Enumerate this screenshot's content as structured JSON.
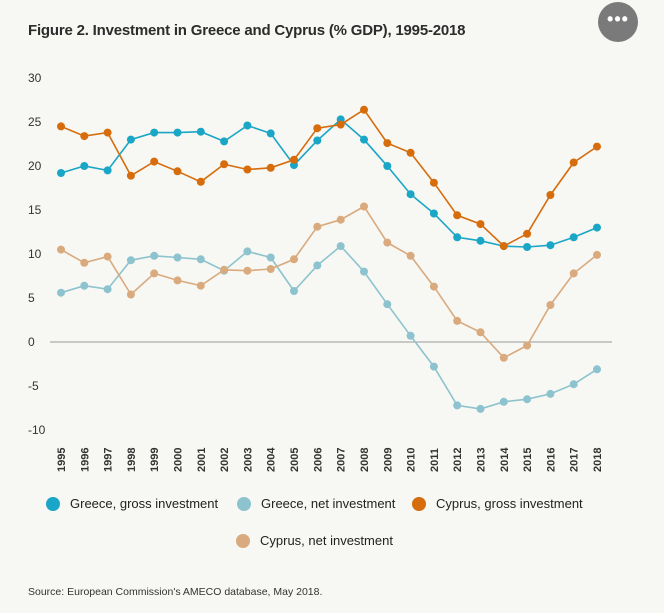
{
  "header": {
    "title": "Figure 2. Investment in Greece and Cyprus (% GDP), 1995-2018",
    "more_label": "•••"
  },
  "chart_data": {
    "type": "line",
    "title": "Figure 2. Investment in Greece and Cyprus (% GDP), 1995-2018",
    "xlabel": "",
    "ylabel": "",
    "ylim": [
      -10,
      30
    ],
    "yticks": [
      30,
      25,
      20,
      15,
      10,
      5,
      0,
      -5,
      -10
    ],
    "ytick_labels": [
      "30",
      "25",
      "20",
      "15",
      "10",
      "5",
      "0",
      "-5",
      "-10"
    ],
    "categories": [
      "1995",
      "1996",
      "1997",
      "1998",
      "1999",
      "2000",
      "2001",
      "2002",
      "2003",
      "2004",
      "2005",
      "2006",
      "2007",
      "2008",
      "2009",
      "2010",
      "2011",
      "2012",
      "2013",
      "2014",
      "2015",
      "2016",
      "2017",
      "2018"
    ],
    "zero_line": true,
    "grid": false,
    "legend_position": "bottom",
    "series": [
      {
        "name": "Greece, gross investment",
        "color": "#1aa6c6",
        "values": [
          19.2,
          20.0,
          19.5,
          23.0,
          23.8,
          23.8,
          23.9,
          22.8,
          24.6,
          23.7,
          20.1,
          22.9,
          25.3,
          23.0,
          20.0,
          16.8,
          14.6,
          11.9,
          11.5,
          10.9,
          10.8,
          11.0,
          11.9,
          13.0
        ]
      },
      {
        "name": "Greece, net investment",
        "color": "#8cc3ce",
        "values": [
          5.6,
          6.4,
          6.0,
          9.3,
          9.8,
          9.6,
          9.4,
          8.1,
          10.3,
          9.6,
          5.8,
          8.7,
          10.9,
          8.0,
          4.3,
          0.7,
          -2.8,
          -7.2,
          -7.6,
          -6.8,
          -6.5,
          -5.9,
          -4.8,
          -3.1
        ]
      },
      {
        "name": "Cyprus, gross investment",
        "color": "#d66c0c",
        "values": [
          24.5,
          23.4,
          23.8,
          18.9,
          20.5,
          19.4,
          18.2,
          20.2,
          19.6,
          19.8,
          20.7,
          24.3,
          24.7,
          26.4,
          22.6,
          21.5,
          18.1,
          14.4,
          13.4,
          10.9,
          12.3,
          16.7,
          20.4,
          22.2
        ]
      },
      {
        "name": "Cyprus, net investment",
        "color": "#d9aa7e",
        "values": [
          10.5,
          9.0,
          9.7,
          5.4,
          7.8,
          7.0,
          6.4,
          8.2,
          8.1,
          8.3,
          9.4,
          13.1,
          13.9,
          15.4,
          11.3,
          9.8,
          6.3,
          2.4,
          1.1,
          -1.8,
          -0.4,
          4.2,
          7.8,
          9.9
        ]
      }
    ]
  },
  "source": "Source: European Commission's AMECO database, May 2018."
}
